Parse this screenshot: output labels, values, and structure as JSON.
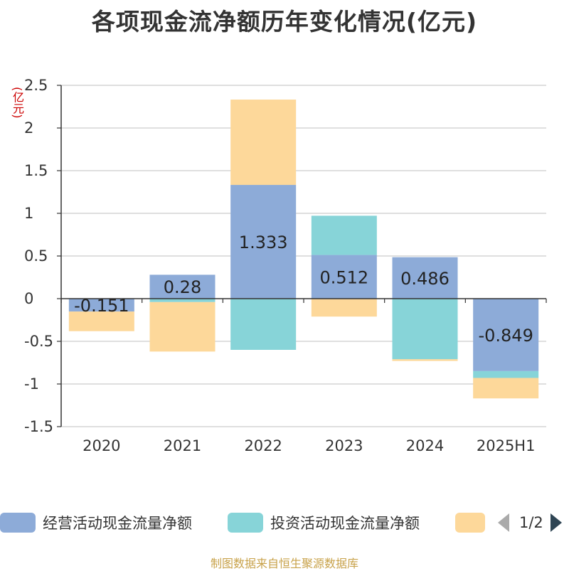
{
  "title": "各项现金流净额历年变化情况(亿元)",
  "unit_label": "(亿元)",
  "source": "制图数据来自恒生聚源数据库",
  "legend": {
    "items": [
      {
        "label": "经营活动现金流量净额",
        "color": "#8dabd8"
      },
      {
        "label": "投资活动现金流量净额",
        "color": "#87d4d8"
      },
      {
        "label": "",
        "color": "#fdd89a"
      }
    ],
    "page": "1/2"
  },
  "chart_data": {
    "type": "bar",
    "stacked": true,
    "categories": [
      "2020",
      "2021",
      "2022",
      "2023",
      "2024",
      "2025H1"
    ],
    "ylim": [
      -1.5,
      2.5
    ],
    "yticks": [
      "2.5",
      "2",
      "1.5",
      "1",
      "0.5",
      "0",
      "-0.5",
      "-1",
      "-1.5"
    ],
    "grid": true,
    "series": [
      {
        "name": "经营活动现金流量净额",
        "color": "#8dabd8",
        "values": [
          -0.151,
          0.28,
          1.333,
          0.512,
          0.486,
          -0.849
        ],
        "labels": [
          "-0.151",
          "0.28",
          "1.333",
          "0.512",
          "0.486",
          "-0.849"
        ]
      },
      {
        "name": "投资活动现金流量净额",
        "color": "#87d4d8",
        "values": [
          0,
          -0.04,
          -0.6,
          0.46,
          -0.71,
          -0.08
        ]
      },
      {
        "name": "",
        "color": "#fdd89a",
        "values": [
          -0.23,
          -0.58,
          1.0,
          -0.21,
          -0.02,
          -0.24
        ]
      }
    ]
  }
}
